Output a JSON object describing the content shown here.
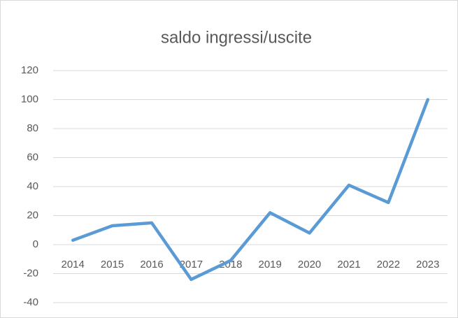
{
  "chart_data": {
    "type": "line",
    "title": "saldo ingressi/uscite",
    "categories": [
      "2014",
      "2015",
      "2016",
      "2017",
      "2018",
      "2019",
      "2020",
      "2021",
      "2022",
      "2023"
    ],
    "values": [
      3,
      13,
      15,
      -24,
      -11,
      22,
      8,
      41,
      29,
      100
    ],
    "color": "#5b9bd5",
    "ylim": [
      -40,
      120
    ],
    "yticks": [
      -40,
      -20,
      0,
      20,
      40,
      60,
      80,
      100,
      120
    ],
    "grid": true
  }
}
